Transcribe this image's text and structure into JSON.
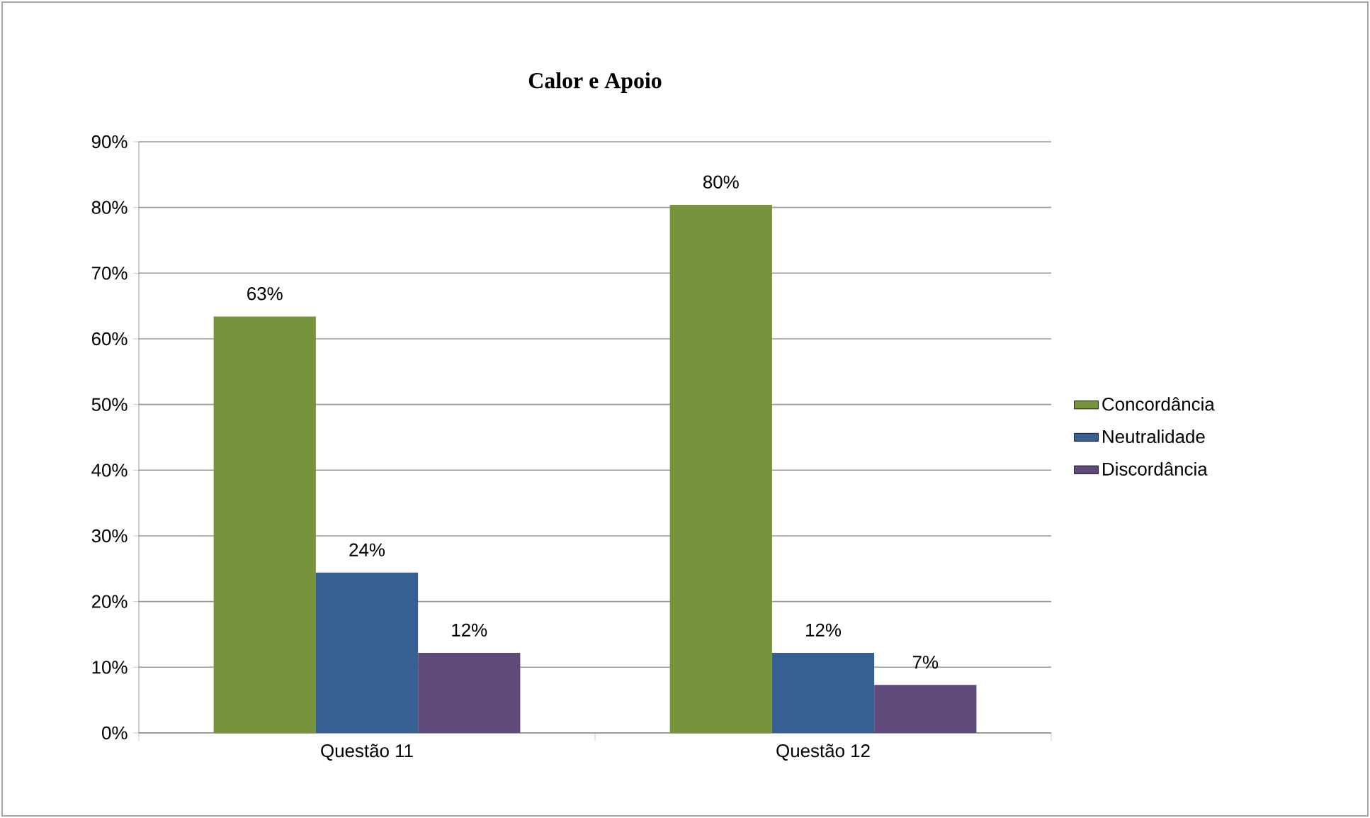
{
  "chart_data": {
    "type": "bar",
    "title": "Calor e Apoio",
    "categories": [
      "Questão 11",
      "Questão 12"
    ],
    "series": [
      {
        "name": "Concordância",
        "color": "#77933c",
        "values": [
          63.4,
          80.4
        ],
        "value_labels": [
          "63%",
          "80%"
        ]
      },
      {
        "name": "Neutralidade",
        "color": "#376092",
        "values": [
          24.4,
          12.2
        ],
        "value_labels": [
          "24%",
          "12%"
        ]
      },
      {
        "name": "Discordância",
        "color": "#604a7b",
        "values": [
          12.2,
          7.3
        ],
        "value_labels": [
          "12%",
          "7%"
        ]
      }
    ],
    "ylim": [
      0,
      90
    ],
    "yticks": [
      {
        "value": 0,
        "label": "0%"
      },
      {
        "value": 10,
        "label": "10%"
      },
      {
        "value": 20,
        "label": "20%"
      },
      {
        "value": 30,
        "label": "30%"
      },
      {
        "value": 40,
        "label": "40%"
      },
      {
        "value": 50,
        "label": "50%"
      },
      {
        "value": 60,
        "label": "60%"
      },
      {
        "value": 70,
        "label": "70%"
      },
      {
        "value": 80,
        "label": "80%"
      },
      {
        "value": 90,
        "label": "90%"
      }
    ],
    "grid": "y",
    "legend": "right"
  }
}
